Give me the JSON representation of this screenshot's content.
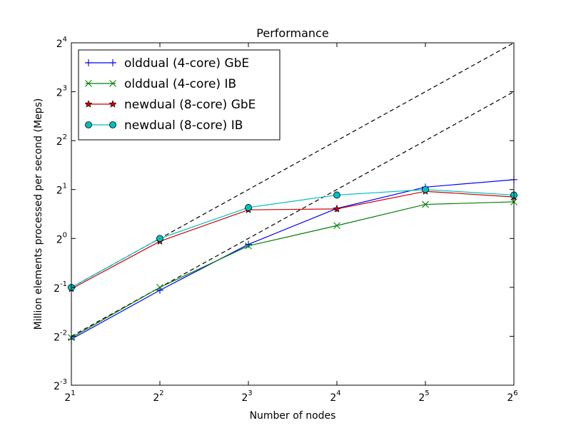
{
  "chart_data": {
    "type": "line",
    "title": "Performance",
    "xlabel": "Number of nodes",
    "ylabel": "Million elements processed per second (Meps)",
    "x_scale": "log2",
    "y_scale": "log2",
    "xlim": [
      2,
      64
    ],
    "ylim": [
      0.125,
      16
    ],
    "x_ticks": [
      {
        "value": 2,
        "base": "2",
        "exp": "1"
      },
      {
        "value": 4,
        "base": "2",
        "exp": "2"
      },
      {
        "value": 8,
        "base": "2",
        "exp": "3"
      },
      {
        "value": 16,
        "base": "2",
        "exp": "4"
      },
      {
        "value": 32,
        "base": "2",
        "exp": "5"
      },
      {
        "value": 64,
        "base": "2",
        "exp": "6"
      }
    ],
    "y_ticks": [
      {
        "value": 0.125,
        "base": "2",
        "exp": "-3"
      },
      {
        "value": 0.25,
        "base": "2",
        "exp": "-2"
      },
      {
        "value": 0.5,
        "base": "2",
        "exp": "-1"
      },
      {
        "value": 1,
        "base": "2",
        "exp": "0"
      },
      {
        "value": 2,
        "base": "2",
        "exp": "1"
      },
      {
        "value": 4,
        "base": "2",
        "exp": "2"
      },
      {
        "value": 8,
        "base": "2",
        "exp": "3"
      },
      {
        "value": 16,
        "base": "2",
        "exp": "4"
      }
    ],
    "legend_position": "top-left",
    "x": [
      2,
      4,
      8,
      16,
      32,
      64
    ],
    "series": [
      {
        "name": "olddual (4-core) GbE",
        "color": "#0000ff",
        "marker": "plus",
        "values": [
          0.24,
          0.48,
          0.92,
          1.53,
          2.07,
          2.3
        ]
      },
      {
        "name": "olddual (4-core) IB",
        "color": "#008000",
        "marker": "x",
        "values": [
          0.245,
          0.5,
          0.9,
          1.2,
          1.62,
          1.68
        ]
      },
      {
        "name": "newdual (8-core) GbE",
        "color": "#cc0000",
        "marker": "star",
        "values": [
          0.49,
          0.96,
          1.5,
          1.52,
          1.95,
          1.8
        ]
      },
      {
        "name": "newdual (8-core) IB",
        "color": "#00bfbf",
        "marker": "circle",
        "values": [
          0.5,
          1.0,
          1.55,
          1.85,
          2.0,
          1.85
        ]
      }
    ],
    "reference_lines": [
      {
        "style": "dashed",
        "color": "#000000",
        "values": [
          0.5,
          1,
          2,
          4,
          8,
          16
        ]
      },
      {
        "style": "dashed",
        "color": "#000000",
        "values": [
          0.25,
          0.5,
          1,
          2,
          4,
          8
        ]
      }
    ]
  }
}
